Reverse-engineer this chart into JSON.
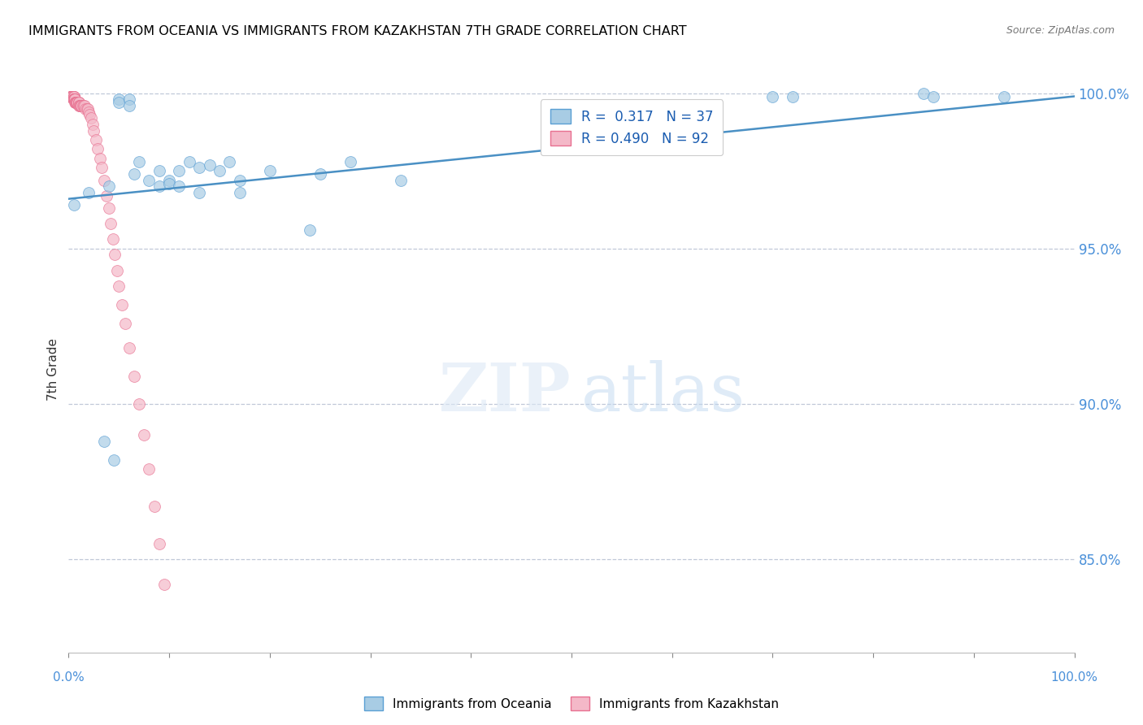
{
  "title": "IMMIGRANTS FROM OCEANIA VS IMMIGRANTS FROM KAZAKHSTAN 7TH GRADE CORRELATION CHART",
  "source": "Source: ZipAtlas.com",
  "ylabel": "7th Grade",
  "ytick_labels": [
    "100.0%",
    "95.0%",
    "90.0%",
    "85.0%"
  ],
  "ytick_values": [
    1.0,
    0.95,
    0.9,
    0.85
  ],
  "legend_r_blue": "0.317",
  "legend_n_blue": "37",
  "legend_r_pink": "0.490",
  "legend_n_pink": "92",
  "blue_color": "#a8cce4",
  "pink_color": "#f4b8c8",
  "blue_edge": "#5a9fd4",
  "pink_edge": "#e87090",
  "trendline_color": "#4a90c4",
  "blue_scatter_x": [
    0.005,
    0.02,
    0.04,
    0.05,
    0.05,
    0.06,
    0.06,
    0.065,
    0.07,
    0.08,
    0.09,
    0.09,
    0.1,
    0.1,
    0.11,
    0.11,
    0.12,
    0.13,
    0.13,
    0.14,
    0.15,
    0.16,
    0.17,
    0.17,
    0.2,
    0.24,
    0.25,
    0.28,
    0.33,
    0.62,
    0.7,
    0.72,
    0.85,
    0.86,
    0.93,
    0.035,
    0.045
  ],
  "blue_scatter_y": [
    0.964,
    0.968,
    0.97,
    0.998,
    0.997,
    0.998,
    0.996,
    0.974,
    0.978,
    0.972,
    0.975,
    0.97,
    0.972,
    0.971,
    0.975,
    0.97,
    0.978,
    0.976,
    0.968,
    0.977,
    0.975,
    0.978,
    0.972,
    0.968,
    0.975,
    0.956,
    0.974,
    0.978,
    0.972,
    0.994,
    0.999,
    0.999,
    1.0,
    0.999,
    0.999,
    0.888,
    0.882
  ],
  "pink_scatter_x": [
    0.002,
    0.002,
    0.002,
    0.002,
    0.002,
    0.002,
    0.002,
    0.003,
    0.003,
    0.003,
    0.003,
    0.003,
    0.004,
    0.004,
    0.004,
    0.004,
    0.005,
    0.005,
    0.005,
    0.005,
    0.005,
    0.005,
    0.005,
    0.005,
    0.005,
    0.005,
    0.005,
    0.005,
    0.006,
    0.006,
    0.006,
    0.006,
    0.006,
    0.006,
    0.006,
    0.006,
    0.007,
    0.007,
    0.007,
    0.007,
    0.007,
    0.008,
    0.008,
    0.008,
    0.008,
    0.009,
    0.009,
    0.009,
    0.01,
    0.01,
    0.01,
    0.01,
    0.01,
    0.011,
    0.011,
    0.012,
    0.012,
    0.013,
    0.013,
    0.014,
    0.015,
    0.016,
    0.017,
    0.018,
    0.019,
    0.02,
    0.021,
    0.022,
    0.024,
    0.025,
    0.027,
    0.029,
    0.031,
    0.033,
    0.035,
    0.038,
    0.04,
    0.042,
    0.044,
    0.046,
    0.048,
    0.05,
    0.053,
    0.056,
    0.06,
    0.065,
    0.07,
    0.075,
    0.08,
    0.085,
    0.09,
    0.095
  ],
  "pink_scatter_y": [
    0.999,
    0.999,
    0.999,
    0.999,
    0.999,
    0.999,
    0.999,
    0.999,
    0.999,
    0.999,
    0.999,
    0.999,
    0.999,
    0.999,
    0.999,
    0.999,
    0.999,
    0.999,
    0.999,
    0.999,
    0.999,
    0.998,
    0.998,
    0.998,
    0.998,
    0.998,
    0.998,
    0.998,
    0.998,
    0.998,
    0.998,
    0.998,
    0.998,
    0.998,
    0.998,
    0.997,
    0.997,
    0.997,
    0.997,
    0.997,
    0.997,
    0.997,
    0.997,
    0.997,
    0.997,
    0.997,
    0.997,
    0.997,
    0.997,
    0.997,
    0.997,
    0.997,
    0.996,
    0.996,
    0.996,
    0.996,
    0.996,
    0.996,
    0.996,
    0.996,
    0.996,
    0.996,
    0.995,
    0.995,
    0.995,
    0.994,
    0.993,
    0.992,
    0.99,
    0.988,
    0.985,
    0.982,
    0.979,
    0.976,
    0.972,
    0.967,
    0.963,
    0.958,
    0.953,
    0.948,
    0.943,
    0.938,
    0.932,
    0.926,
    0.918,
    0.909,
    0.9,
    0.89,
    0.879,
    0.867,
    0.855,
    0.842
  ],
  "trendline_x": [
    0.0,
    1.0
  ],
  "trendline_y_start": 0.966,
  "trendline_y_end": 0.999,
  "xlim": [
    0.0,
    1.0
  ],
  "ylim": [
    0.82,
    1.002
  ]
}
